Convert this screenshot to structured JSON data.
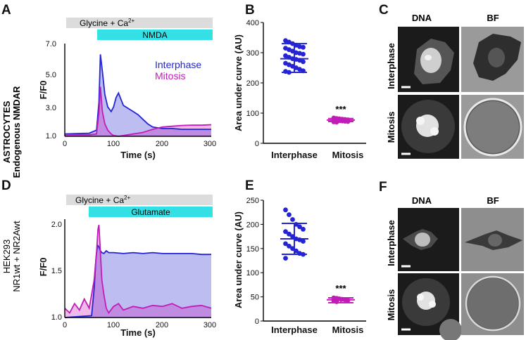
{
  "figure": {
    "panels": {
      "A": "A",
      "B": "B",
      "C": "C",
      "D": "D",
      "E": "E",
      "F": "F"
    },
    "row1_label": [
      "ASTROCYTES",
      "Endogenous NMDAR"
    ],
    "row2_label": [
      "HEK293",
      "NR1wt + NR2Awt"
    ],
    "colors": {
      "interphase": "#2424d4",
      "mitosis": "#c21cb8",
      "treatment_bar": "#33e0e6",
      "pre_bar": "#dcdcdc"
    }
  },
  "panel_A": {
    "bar_pre_prefix": "Glycine + Ca",
    "bar_pre_sup": "2+",
    "bar_treat": "NMDA",
    "ylabel": "F/F0",
    "xlabel": "Time (s)",
    "yticks": [
      "1.0",
      "3.0",
      "5.0",
      "7.0"
    ],
    "xticks": [
      "0",
      "100",
      "200",
      "300"
    ],
    "legend": [
      "Interphase",
      "Mitosis"
    ]
  },
  "panel_D": {
    "bar_pre_prefix": "Glycine + Ca",
    "bar_pre_sup": "2+",
    "bar_treat": "Glutamate",
    "ylabel": "F/F0",
    "xlabel": "Time (s)",
    "yticks": [
      "1.0",
      "1.5",
      "2.0"
    ],
    "xticks": [
      "0",
      "100",
      "200",
      "300"
    ]
  },
  "panel_B": {
    "ylabel": "Area under curve (AU)",
    "yticks": [
      "0",
      "100",
      "200",
      "300",
      "400"
    ],
    "categories": [
      "Interphase",
      "Mitosis"
    ],
    "significance": "***"
  },
  "panel_E": {
    "ylabel": "Area under curve (AU)",
    "yticks": [
      "0",
      "50",
      "100",
      "150",
      "200",
      "250"
    ],
    "categories": [
      "Interphase",
      "Mitosis"
    ],
    "significance": "***"
  },
  "panel_C": {
    "col1": "DNA",
    "col2": "BF",
    "row1": "Interphase",
    "row2": "Mitosis"
  },
  "panel_F": {
    "col1": "DNA",
    "col2": "BF",
    "row1": "Interphase",
    "row2": "Mitosis"
  },
  "chart_data": [
    {
      "id": "A",
      "type": "line",
      "title": "",
      "xlabel": "Time (s)",
      "ylabel": "F/F0",
      "xlim": [
        0,
        300
      ],
      "ylim": [
        1,
        7
      ],
      "series": [
        {
          "name": "Interphase",
          "x": [
            0,
            50,
            65,
            70,
            73,
            77,
            82,
            88,
            95,
            100,
            105,
            110,
            115,
            120,
            130,
            140,
            150,
            160,
            170,
            180,
            190,
            200,
            220,
            240,
            260,
            280,
            300
          ],
          "values": [
            1.15,
            1.2,
            1.4,
            3.2,
            6.3,
            5.2,
            3.7,
            2.9,
            2.6,
            2.9,
            3.5,
            3.8,
            3.4,
            3.0,
            2.8,
            2.6,
            2.4,
            2.1,
            1.8,
            1.6,
            1.55,
            1.5,
            1.5,
            1.45,
            1.45,
            1.45,
            1.45
          ]
        },
        {
          "name": "Mitosis",
          "x": [
            0,
            50,
            65,
            70,
            73,
            77,
            82,
            88,
            95,
            100,
            110,
            120,
            130,
            140,
            150,
            160,
            170,
            180,
            200,
            220,
            240,
            260,
            280,
            300
          ],
          "values": [
            1.1,
            1.1,
            1.15,
            2.5,
            4.2,
            2.6,
            1.8,
            1.4,
            1.15,
            1.05,
            1.0,
            1.05,
            1.1,
            1.15,
            1.2,
            1.25,
            1.35,
            1.45,
            1.6,
            1.65,
            1.7,
            1.72,
            1.72,
            1.75
          ]
        }
      ]
    },
    {
      "id": "B",
      "type": "scatter",
      "ylabel": "Area under curve (AU)",
      "ylim": [
        0,
        400
      ],
      "categories": [
        "Interphase",
        "Mitosis"
      ],
      "series": [
        {
          "name": "Interphase",
          "mean": 280,
          "sd_low": 235,
          "sd_high": 330,
          "values": [
            340,
            335,
            330,
            325,
            320,
            318,
            315,
            310,
            305,
            300,
            298,
            295,
            290,
            285,
            280,
            278,
            275,
            270,
            265,
            260,
            255,
            250,
            245,
            240,
            238,
            235
          ]
        },
        {
          "name": "Mitosis",
          "mean": 77,
          "sd_low": 72,
          "sd_high": 82,
          "values": [
            84,
            82,
            81,
            80,
            79,
            78,
            77,
            76,
            75,
            74,
            73,
            72,
            71,
            70
          ]
        }
      ]
    },
    {
      "id": "D",
      "type": "line",
      "xlabel": "Time (s)",
      "ylabel": "F/F0",
      "xlim": [
        0,
        300
      ],
      "ylim": [
        1,
        2
      ],
      "series": [
        {
          "name": "Interphase",
          "x": [
            0,
            55,
            60,
            64,
            67,
            70,
            73,
            76,
            80,
            85,
            90,
            100,
            120,
            140,
            160,
            180,
            200,
            220,
            240,
            260,
            280,
            300
          ],
          "values": [
            1.0,
            1.02,
            1.3,
            1.65,
            1.78,
            1.76,
            1.72,
            1.7,
            1.69,
            1.72,
            1.7,
            1.7,
            1.69,
            1.7,
            1.69,
            1.7,
            1.69,
            1.69,
            1.69,
            1.69,
            1.68,
            1.68
          ]
        },
        {
          "name": "Mitosis",
          "x": [
            0,
            10,
            20,
            30,
            40,
            50,
            60,
            65,
            68,
            70,
            73,
            76,
            80,
            85,
            90,
            100,
            110,
            120,
            140,
            160,
            180,
            200,
            220,
            240,
            260,
            280,
            300
          ],
          "values": [
            1.1,
            1.05,
            1.15,
            1.08,
            1.2,
            1.1,
            1.4,
            1.7,
            1.95,
            2.0,
            1.7,
            1.4,
            1.25,
            1.1,
            1.05,
            1.12,
            1.15,
            1.08,
            1.12,
            1.1,
            1.13,
            1.12,
            1.15,
            1.1,
            1.12,
            1.13,
            1.1
          ]
        }
      ]
    },
    {
      "id": "E",
      "type": "scatter",
      "ylabel": "Area under curve (AU)",
      "ylim": [
        0,
        250
      ],
      "categories": [
        "Interphase",
        "Mitosis"
      ],
      "series": [
        {
          "name": "Interphase",
          "mean": 170,
          "sd_low": 138,
          "sd_high": 202,
          "values": [
            230,
            220,
            210,
            200,
            195,
            190,
            185,
            180,
            175,
            170,
            168,
            165,
            160,
            155,
            150,
            145,
            140,
            138,
            130
          ]
        },
        {
          "name": "Mitosis",
          "mean": 44,
          "sd_low": 38,
          "sd_high": 48,
          "values": [
            48,
            47,
            46,
            45,
            44,
            43,
            42,
            40
          ]
        }
      ]
    }
  ]
}
